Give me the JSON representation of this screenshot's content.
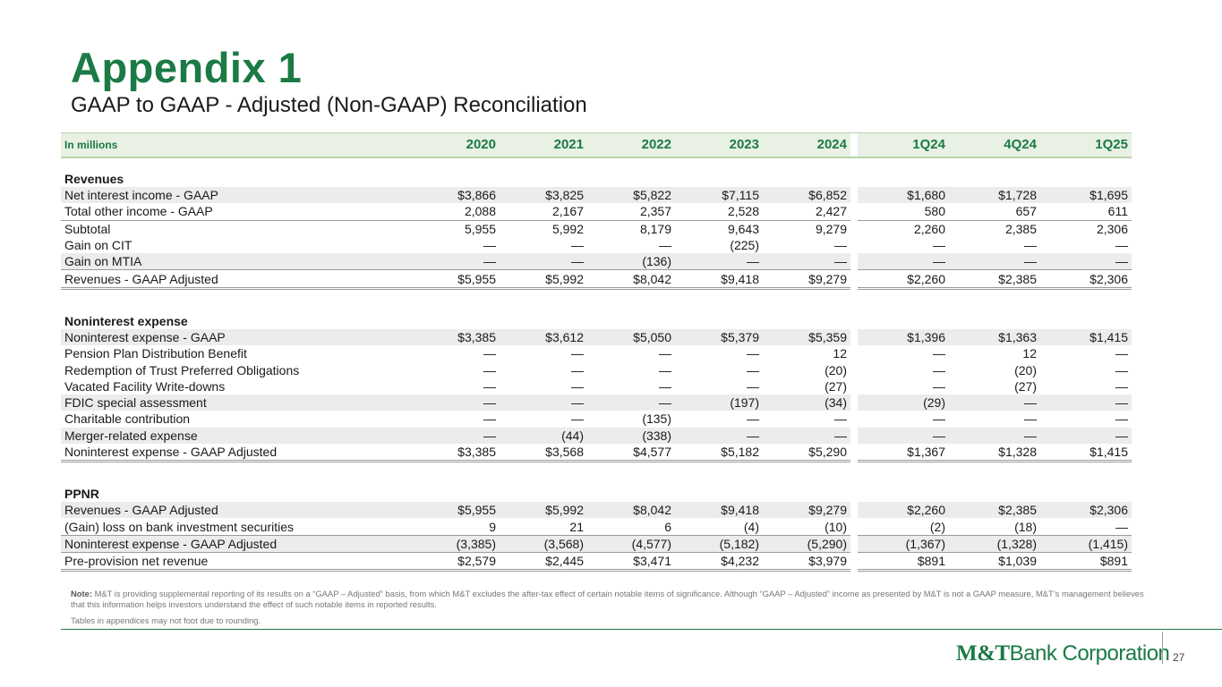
{
  "title": "Appendix 1",
  "subtitle": "GAAP to GAAP - Adjusted (Non-GAAP) Reconciliation",
  "table": {
    "unit_label": "In millions",
    "years": [
      "2020",
      "2021",
      "2022",
      "2023",
      "2024"
    ],
    "quarters": [
      "1Q24",
      "4Q24",
      "1Q25"
    ],
    "sections": {
      "revenues": {
        "heading": "Revenues",
        "rows": [
          {
            "label": "Net interest income - GAAP",
            "values": [
              "$3,866",
              "$3,825",
              "$5,822",
              "$7,115",
              "$6,852",
              "$1,680",
              "$1,728",
              "$1,695"
            ]
          },
          {
            "label": "Total other income - GAAP",
            "values": [
              "2,088",
              "2,167",
              "2,357",
              "2,528",
              "2,427",
              "580",
              "657",
              "611"
            ]
          },
          {
            "label": "Subtotal",
            "values": [
              "5,955",
              "5,992",
              "8,179",
              "9,643",
              "9,279",
              "2,260",
              "2,385",
              "2,306"
            ]
          },
          {
            "label": "Gain on CIT",
            "values": [
              "—",
              "—",
              "—",
              "(225)",
              "—",
              "—",
              "—",
              "—"
            ]
          },
          {
            "label": "Gain on MTIA",
            "values": [
              "—",
              "—",
              "(136)",
              "—",
              "—",
              "—",
              "—",
              "—"
            ]
          },
          {
            "label": "Revenues - GAAP Adjusted",
            "values": [
              "$5,955",
              "$5,992",
              "$8,042",
              "$9,418",
              "$9,279",
              "$2,260",
              "$2,385",
              "$2,306"
            ]
          }
        ]
      },
      "nonint": {
        "heading": "Noninterest expense",
        "rows": [
          {
            "label": "Noninterest expense - GAAP",
            "values": [
              "$3,385",
              "$3,612",
              "$5,050",
              "$5,379",
              "$5,359",
              "$1,396",
              "$1,363",
              "$1,415"
            ]
          },
          {
            "label": "Pension Plan Distribution Benefit",
            "values": [
              "—",
              "—",
              "—",
              "—",
              "12",
              "—",
              "12",
              "—"
            ]
          },
          {
            "label": "Redemption of Trust Preferred Obligations",
            "values": [
              "—",
              "—",
              "—",
              "—",
              "(20)",
              "—",
              "(20)",
              "—"
            ]
          },
          {
            "label": "Vacated Facility Write-downs",
            "values": [
              "—",
              "—",
              "—",
              "—",
              "(27)",
              "—",
              "(27)",
              "—"
            ]
          },
          {
            "label": "FDIC special assessment",
            "values": [
              "—",
              "—",
              "—",
              "(197)",
              "(34)",
              "(29)",
              "—",
              "—"
            ]
          },
          {
            "label": "Charitable contribution",
            "values": [
              "—",
              "—",
              "(135)",
              "—",
              "—",
              "—",
              "—",
              "—"
            ]
          },
          {
            "label": "Merger-related expense",
            "values": [
              "—",
              "(44)",
              "(338)",
              "—",
              "—",
              "—",
              "—",
              "—"
            ]
          },
          {
            "label": "Noninterest expense - GAAP Adjusted",
            "values": [
              "$3,385",
              "$3,568",
              "$4,577",
              "$5,182",
              "$5,290",
              "$1,367",
              "$1,328",
              "$1,415"
            ]
          }
        ]
      },
      "ppnr": {
        "heading": "PPNR",
        "rows": [
          {
            "label": "Revenues - GAAP Adjusted",
            "values": [
              "$5,955",
              "$5,992",
              "$8,042",
              "$9,418",
              "$9,279",
              "$2,260",
              "$2,385",
              "$2,306"
            ]
          },
          {
            "label": "(Gain) loss on bank investment securities",
            "values": [
              "9",
              "21",
              "6",
              "(4)",
              "(10)",
              "(2)",
              "(18)",
              "—"
            ]
          },
          {
            "label": "Noninterest expense - GAAP Adjusted",
            "values": [
              "(3,385)",
              "(3,568)",
              "(4,577)",
              "(5,182)",
              "(5,290)",
              "(1,367)",
              "(1,328)",
              "(1,415)"
            ]
          },
          {
            "label": "Pre-provision net revenue",
            "values": [
              "$2,579",
              "$2,445",
              "$3,471",
              "$4,232",
              "$3,979",
              "$891",
              "$1,039",
              "$891"
            ]
          }
        ]
      }
    }
  },
  "note_label": "Note:",
  "note_text": " M&T is providing supplemental reporting of its results on a “GAAP – Adjusted” basis, from which M&T excludes the after-tax effect of certain notable items of significance. Although “GAAP – Adjusted” income as presented by M&T is not a GAAP measure, M&T’s management believes that this information helps investors understand the effect of such notable items in reported results.",
  "note2": "Tables in appendices may not foot due to rounding.",
  "logo_part1": "M&T",
  "logo_part2": "Bank Corporation",
  "page_number": "27",
  "colors": {
    "brand_green": "#1b7a45",
    "header_fill": "#e8f1e3",
    "row_shade": "#ececec"
  }
}
